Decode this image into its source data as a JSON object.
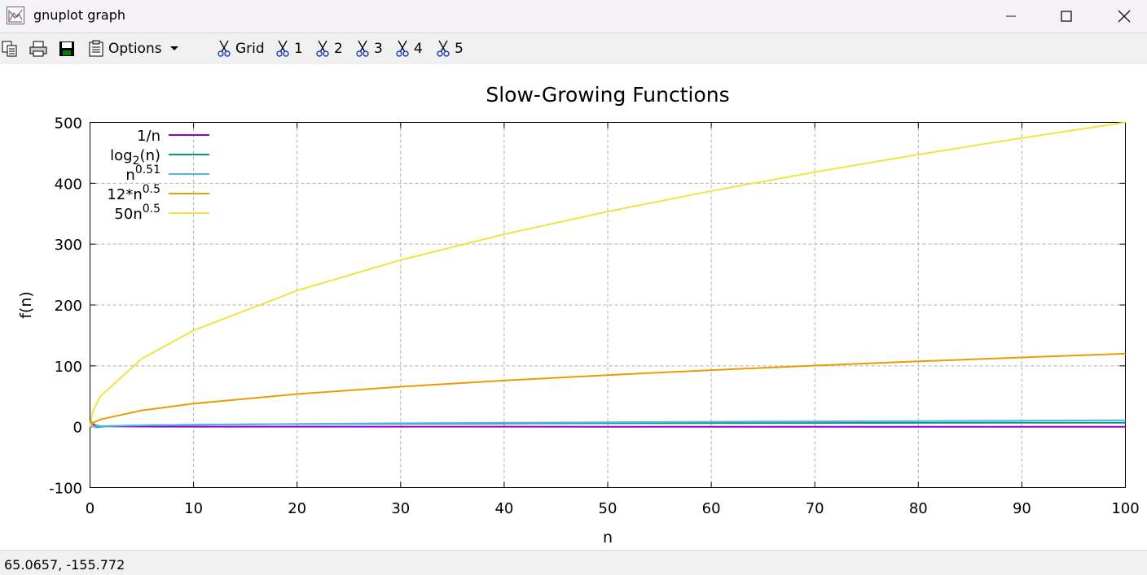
{
  "window": {
    "title": "gnuplot graph"
  },
  "toolbar": {
    "options_label": "Options",
    "grid_label": "Grid",
    "plot_toggles": [
      "1",
      "2",
      "3",
      "4",
      "5"
    ]
  },
  "status": {
    "coords": "65.0657, -155.772"
  },
  "chart_data": {
    "type": "line",
    "title": "Slow-Growing Functions",
    "xlabel": "n",
    "ylabel": "f(n)",
    "xlim": [
      0,
      100
    ],
    "ylim": [
      -100,
      500
    ],
    "xticks": [
      "0",
      "10",
      "20",
      "30",
      "40",
      "50",
      "60",
      "70",
      "80",
      "90",
      "100"
    ],
    "yticks": [
      "-100",
      "0",
      "100",
      "200",
      "300",
      "400",
      "500"
    ],
    "grid": true,
    "legend_position": "top-left",
    "series": [
      {
        "name": "1/n",
        "color": "#9400d3",
        "x": [
          0.1,
          0.2,
          0.5,
          1,
          2,
          5,
          10,
          20,
          50,
          100
        ],
        "values": [
          10,
          5,
          2,
          1,
          0.5,
          0.2,
          0.1,
          0.05,
          0.02,
          0.01
        ]
      },
      {
        "name": "log2(n)",
        "color": "#009e73",
        "x": [
          0.5,
          1,
          2,
          5,
          10,
          20,
          30,
          40,
          50,
          60,
          70,
          80,
          90,
          100
        ],
        "values": [
          -1,
          0,
          1,
          2.32,
          3.32,
          4.32,
          4.91,
          5.32,
          5.64,
          5.91,
          6.13,
          6.32,
          6.49,
          6.64
        ]
      },
      {
        "name": "n^0.51",
        "color": "#56b4e9",
        "x": [
          0,
          1,
          5,
          10,
          20,
          30,
          40,
          50,
          60,
          70,
          80,
          90,
          100
        ],
        "values": [
          0,
          1,
          2.27,
          3.24,
          4.61,
          5.66,
          6.56,
          7.35,
          8.07,
          8.74,
          9.36,
          9.94,
          10.47
        ]
      },
      {
        "name": "12*n^0.5",
        "color": "#e69f00",
        "x": [
          0,
          0.25,
          1,
          5,
          10,
          20,
          30,
          40,
          50,
          60,
          70,
          80,
          90,
          100
        ],
        "values": [
          0,
          6,
          12,
          26.83,
          37.95,
          53.67,
          65.73,
          75.89,
          84.85,
          92.95,
          100.4,
          107.33,
          113.84,
          120
        ]
      },
      {
        "name": "50n^0.5",
        "color": "#f0e442",
        "x": [
          0,
          0.25,
          1,
          5,
          10,
          20,
          30,
          40,
          50,
          60,
          70,
          80,
          90,
          100
        ],
        "values": [
          0,
          25,
          50,
          111.8,
          158.11,
          223.61,
          273.86,
          316.23,
          353.55,
          387.3,
          418.33,
          447.21,
          474.34,
          500
        ]
      }
    ]
  }
}
